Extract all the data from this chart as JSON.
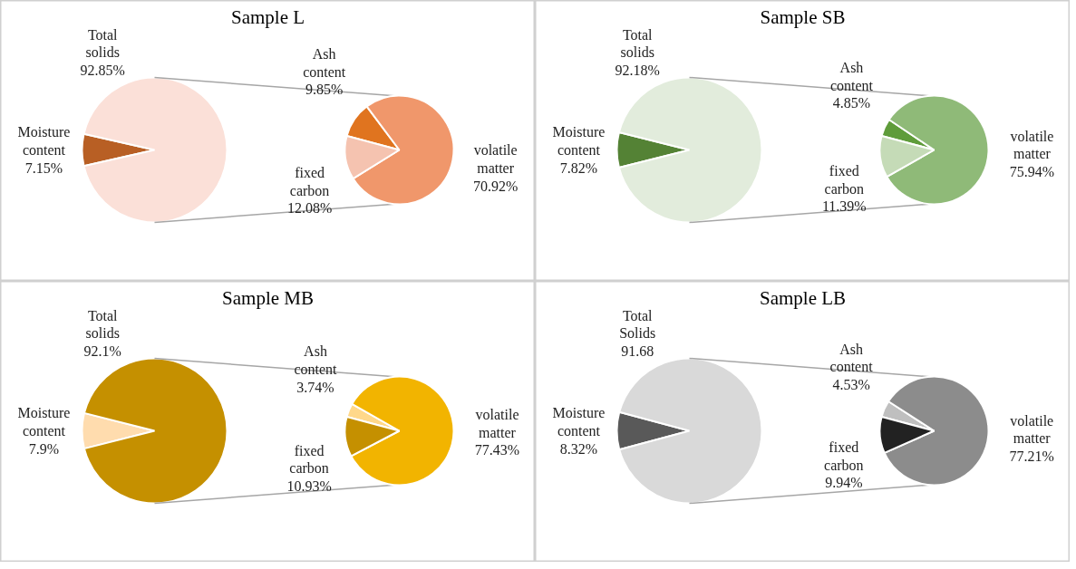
{
  "chart_data": [
    {
      "type": "pie",
      "title": "Sample L",
      "categories": [
        "Moisture content",
        "Total solids"
      ],
      "values": [
        7.15,
        92.85
      ],
      "value_labels": [
        "7.15%",
        "92.85%"
      ],
      "colors": [
        "#b85f24",
        "#fbe0d8"
      ]
    },
    {
      "type": "pie",
      "categories": [
        "Ash content",
        "volatile matter",
        "fixed carbon"
      ],
      "values": [
        9.85,
        70.92,
        12.08
      ],
      "value_labels": [
        "9.85%",
        "70.92%",
        "12.08%"
      ],
      "colors": [
        "#e0741f",
        "#f0976b",
        "#f5c3b0"
      ]
    },
    {
      "type": "pie",
      "title": "Sample SB",
      "categories": [
        "Moisture content",
        "Total solids"
      ],
      "values": [
        7.82,
        92.18
      ],
      "value_labels": [
        "7.82%",
        "92.18%"
      ],
      "colors": [
        "#548235",
        "#e2ecdc"
      ]
    },
    {
      "type": "pie",
      "categories": [
        "Ash content",
        "volatile matter",
        "fixed carbon"
      ],
      "values": [
        4.85,
        75.94,
        11.39
      ],
      "value_labels": [
        "4.85%",
        "75.94%",
        "11.39%"
      ],
      "colors": [
        "#5f9c3a",
        "#8fba78",
        "#c5dbb7"
      ]
    },
    {
      "type": "pie",
      "title": "Sample MB",
      "categories": [
        "Moisture content",
        "Total solids"
      ],
      "values": [
        7.9,
        92.1
      ],
      "value_labels": [
        "7.9%",
        "92.1%"
      ],
      "colors": [
        "#ffdcae",
        "#c59000"
      ]
    },
    {
      "type": "pie",
      "categories": [
        "Ash content",
        "volatile matter",
        "fixed carbon"
      ],
      "values": [
        3.74,
        77.43,
        10.93
      ],
      "value_labels": [
        "3.74%",
        "77.43%",
        "10.93%"
      ],
      "colors": [
        "#ffd88a",
        "#f2b400",
        "#c59000"
      ]
    },
    {
      "type": "pie",
      "title": "Sample LB",
      "categories": [
        "Moisture content",
        "Total Solids"
      ],
      "values": [
        8.32,
        91.68
      ],
      "value_labels": [
        "8.32%",
        "91.68"
      ],
      "colors": [
        "#595959",
        "#d9d9d9"
      ]
    },
    {
      "type": "pie",
      "categories": [
        "Ash content",
        "volatile matter",
        "fixed carbon"
      ],
      "values": [
        4.53,
        77.21,
        9.94
      ],
      "value_labels": [
        "4.53%",
        "77.21%",
        "9.94%"
      ],
      "colors": [
        "#bfbfbf",
        "#8c8c8c",
        "#222222"
      ]
    }
  ]
}
